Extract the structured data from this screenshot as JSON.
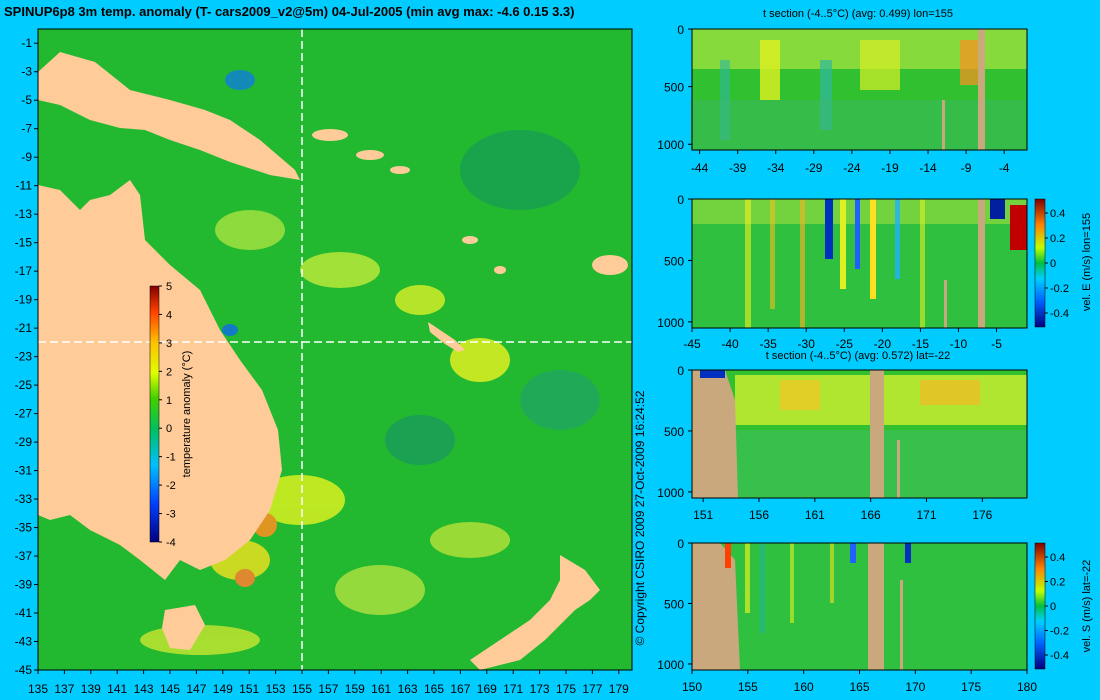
{
  "main_title": "SPINUP6p8 3m temp. anomaly (T- cars2009_v2@5m) 04-Jul-2005 (min avg max: -4.6 0.15 3.3)",
  "copyright": "© Copyright CSIRO 2009   27-Oct-2009 16:24:52",
  "chart_data": [
    {
      "type": "heatmap",
      "name": "map",
      "xlabel": "",
      "ylabel": "",
      "x_ticks": [
        135,
        137,
        139,
        141,
        143,
        145,
        147,
        149,
        151,
        153,
        155,
        157,
        159,
        161,
        163,
        165,
        167,
        169,
        171,
        173,
        175,
        177,
        179
      ],
      "y_ticks": [
        -1,
        -3,
        -5,
        -7,
        -9,
        -11,
        -13,
        -15,
        -17,
        -19,
        -21,
        -23,
        -25,
        -27,
        -29,
        -31,
        -33,
        -35,
        -37,
        -39,
        -41,
        -43,
        -45
      ],
      "xlim": [
        135,
        180
      ],
      "ylim": [
        -45,
        0
      ],
      "crosshair": {
        "lon": 155,
        "lat": -22
      },
      "colorbar": {
        "label": "temperature anomaly (°C)",
        "range": [
          -4,
          5
        ],
        "ticks": [
          5,
          4,
          3,
          2,
          1,
          0,
          -1,
          -2,
          -3,
          -4
        ]
      }
    },
    {
      "type": "heatmap",
      "name": "t-section-lon",
      "title": "t section (-4..5°C) (avg: 0.499) lon=155",
      "x_ticks": [
        -44,
        -39,
        -34,
        -29,
        -24,
        -19,
        -14,
        -9,
        -4
      ],
      "y_ticks": [
        0,
        500,
        1000
      ],
      "xlim": [
        -45,
        -1
      ],
      "ylim": [
        1050,
        0
      ]
    },
    {
      "type": "heatmap",
      "name": "vel-e-lon",
      "title": "",
      "x_ticks": [
        -45,
        -40,
        -35,
        -30,
        -25,
        -20,
        -15,
        -10,
        -5
      ],
      "y_ticks": [
        0,
        500,
        1000
      ],
      "xlim": [
        -45,
        -1
      ],
      "ylim": [
        1050,
        0
      ],
      "colorbar": {
        "label": "vel. E (m/s) lon=155",
        "range": [
          -0.4,
          0.4
        ],
        "ticks": [
          "0.4",
          "0.2",
          "0",
          "-0.2",
          "-0.4"
        ]
      }
    },
    {
      "type": "heatmap",
      "name": "t-section-lat",
      "title": "t section (-4..5°C) (avg: 0.572) lat=-22",
      "x_ticks": [
        151,
        156,
        161,
        166,
        171,
        176
      ],
      "y_ticks": [
        0,
        500,
        1000
      ],
      "xlim": [
        150,
        180
      ],
      "ylim": [
        1050,
        0
      ]
    },
    {
      "type": "heatmap",
      "name": "vel-s-lat",
      "title": "",
      "x_ticks": [
        150,
        155,
        160,
        165,
        170,
        175,
        180
      ],
      "y_ticks": [
        0,
        500,
        1000
      ],
      "xlim": [
        150,
        180
      ],
      "ylim": [
        1050,
        0
      ],
      "colorbar": {
        "label": "vel. S (m/s) lat=-22",
        "range": [
          -0.4,
          0.4
        ],
        "ticks": [
          "0.4",
          "0.2",
          "0",
          "-0.2",
          "-0.4"
        ]
      }
    }
  ]
}
